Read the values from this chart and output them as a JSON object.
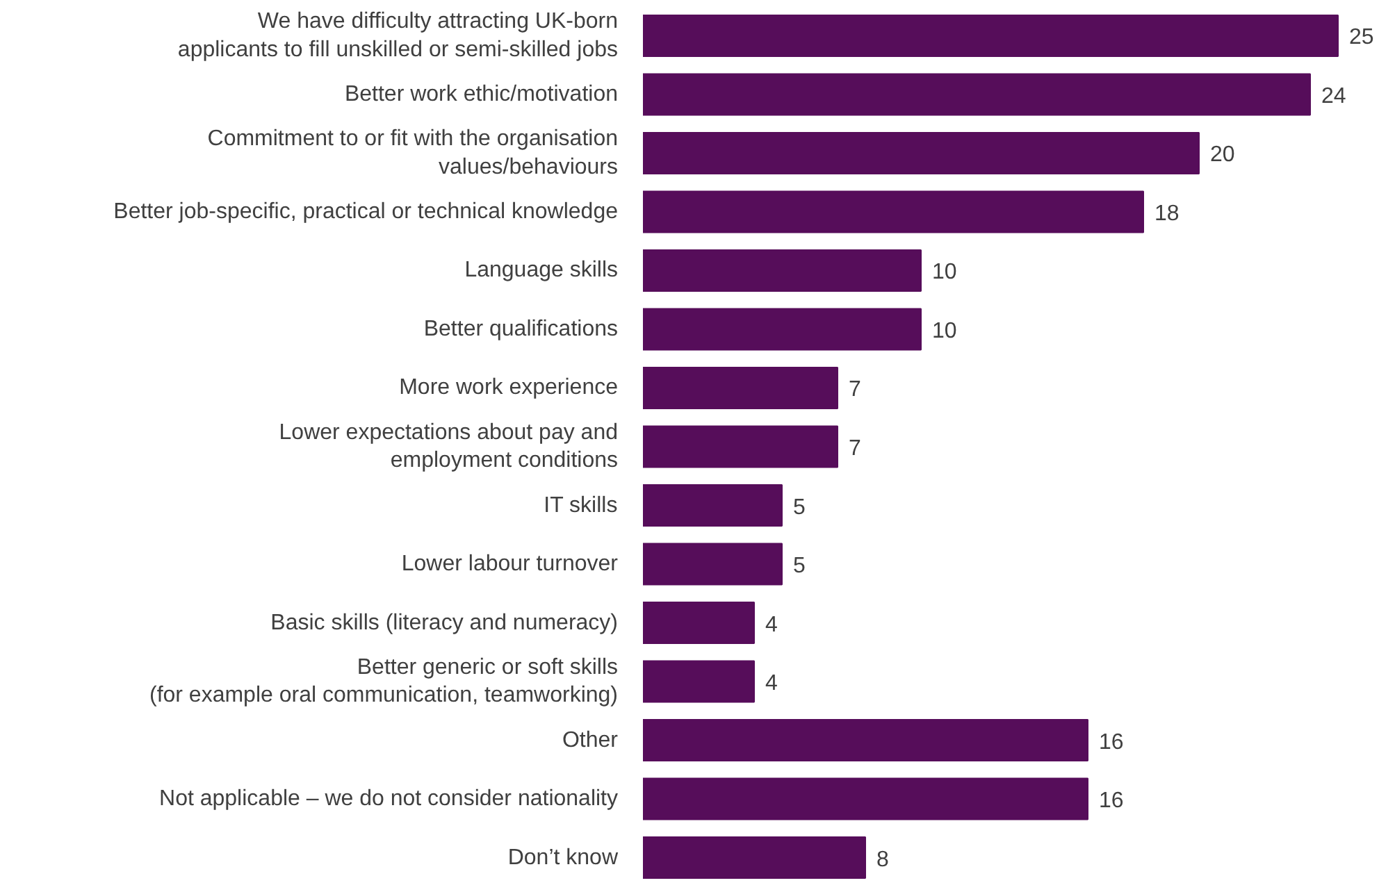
{
  "chart_data": {
    "type": "bar",
    "orientation": "horizontal",
    "categories": [
      "We have difficulty attracting UK-born\napplicants to fill unskilled or semi-skilled jobs",
      "Better work ethic/motivation",
      "Commitment to or fit with the organisation\nvalues/behaviours",
      "Better job-specific, practical or technical knowledge",
      "Language skills",
      "Better qualifications",
      "More work experience",
      "Lower expectations about pay and\nemployment conditions",
      "IT skills",
      "Lower labour turnover",
      "Basic skills (literacy and numeracy)",
      "Better generic or soft skills\n(for example oral communication, teamworking)",
      "Other",
      "Not applicable – we do not consider nationality",
      "Don’t know"
    ],
    "values": [
      25,
      24,
      20,
      18,
      10,
      10,
      7,
      7,
      5,
      5,
      4,
      4,
      16,
      16,
      8
    ],
    "color": "#560d5a",
    "data_labels": true,
    "grid": false
  }
}
